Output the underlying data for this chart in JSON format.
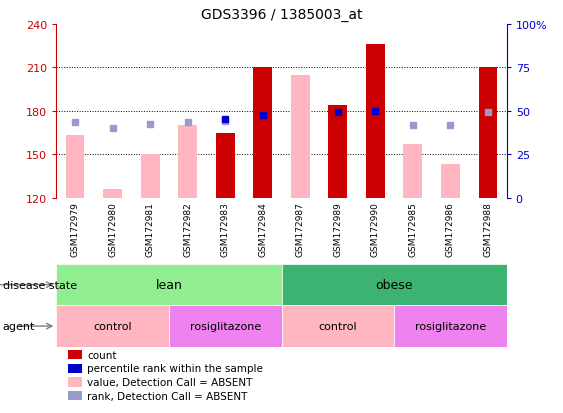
{
  "title": "GDS3396 / 1385003_at",
  "samples": [
    "GSM172979",
    "GSM172980",
    "GSM172981",
    "GSM172982",
    "GSM172983",
    "GSM172984",
    "GSM172987",
    "GSM172989",
    "GSM172990",
    "GSM172985",
    "GSM172986",
    "GSM172988"
  ],
  "ylim_left": [
    120,
    240
  ],
  "ylim_right": [
    0,
    100
  ],
  "yticks_left": [
    120,
    150,
    180,
    210,
    240
  ],
  "yticks_right": [
    0,
    25,
    50,
    75,
    100
  ],
  "red_bars": {
    "GSM172983": 165,
    "GSM172984": 210,
    "GSM172989": 184,
    "GSM172990": 226,
    "GSM172988": 210
  },
  "pink_bars": {
    "GSM172979": 163,
    "GSM172980": 126,
    "GSM172981": 150,
    "GSM172982": 170,
    "GSM172984": 120,
    "GSM172987": 205,
    "GSM172990": 180,
    "GSM172985": 157,
    "GSM172986": 143,
    "GSM172988": 120
  },
  "blue_squares": {
    "GSM172983": 174,
    "GSM172984": 177,
    "GSM172989": 179,
    "GSM172990": 180
  },
  "lavender_squares": {
    "GSM172979": 172,
    "GSM172980": 168,
    "GSM172981": 171,
    "GSM172982": 172,
    "GSM172983": 173,
    "GSM172985": 170,
    "GSM172986": 170,
    "GSM172988": 179
  },
  "colors": {
    "red_bar": "#CC0000",
    "pink_bar": "#FFB6C1",
    "blue_square": "#0000CC",
    "lavender_square": "#9999CC",
    "left_axis": "#CC0000",
    "right_axis": "#0000CC",
    "lean_light": "#90EE90",
    "lean_dark": "#3CB371",
    "control_light": "#FFB6C1",
    "rosiglitazone_dark": "#EE82EE",
    "sample_bg": "#C8C8C8"
  },
  "legend_items": [
    {
      "label": "count",
      "color": "#CC0000"
    },
    {
      "label": "percentile rank within the sample",
      "color": "#0000CC"
    },
    {
      "label": "value, Detection Call = ABSENT",
      "color": "#FFB6C1"
    },
    {
      "label": "rank, Detection Call = ABSENT",
      "color": "#9999CC"
    }
  ],
  "disease_groups": [
    {
      "label": "lean",
      "start": 0,
      "end": 6,
      "color_light": "#90EE90"
    },
    {
      "label": "obese",
      "start": 6,
      "end": 12,
      "color_dark": "#3CB371"
    }
  ],
  "agent_groups": [
    {
      "label": "control",
      "start": 0,
      "end": 3,
      "color": "#FFB6C1"
    },
    {
      "label": "rosiglitazone",
      "start": 3,
      "end": 6,
      "color": "#EE82EE"
    },
    {
      "label": "control",
      "start": 6,
      "end": 9,
      "color": "#FFB6C1"
    },
    {
      "label": "rosiglitazone",
      "start": 9,
      "end": 12,
      "color": "#EE82EE"
    }
  ]
}
